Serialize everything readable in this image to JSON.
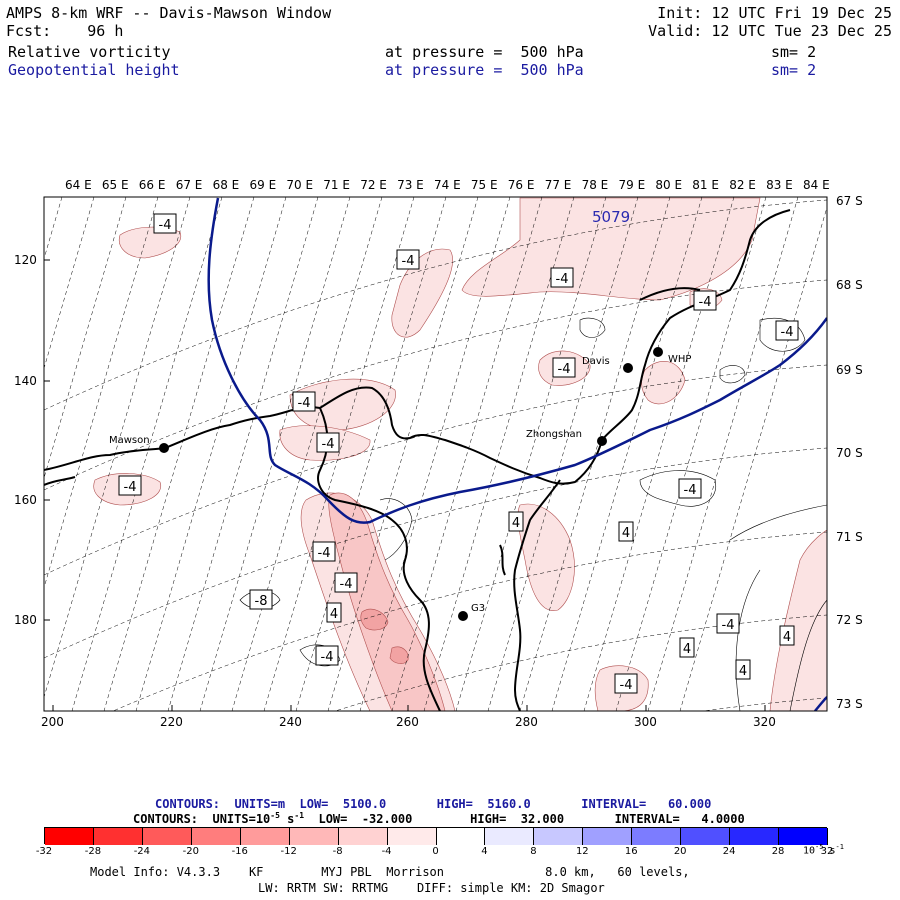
{
  "header": {
    "title": "AMPS 8-km WRF -- Davis-Mawson Window",
    "init": "Init: 12 UTC Fri 19 Dec 25",
    "fcst": "Fcst:    96 h",
    "valid": "Valid: 12 UTC Tue 23 Dec 25",
    "field1": {
      "name": "Relative vorticity",
      "level": "at pressure =  500 hPa",
      "sm": "sm= 2"
    },
    "field2": {
      "name": "Geopotential height",
      "level": "at pressure =  500 hPa",
      "sm": "sm= 2"
    }
  },
  "map": {
    "top_lon_labels": [
      "64 E",
      "65 E",
      "66 E",
      "67 E",
      "68 E",
      "69 E",
      "70 E",
      "71 E",
      "72 E",
      "73 E",
      "74 E",
      "75 E",
      "76 E",
      "77 E",
      "78 E",
      "79 E",
      "80 E",
      "81 E",
      "82 E",
      "83 E",
      "84 E"
    ],
    "right_lat_labels": [
      "67 S",
      "68 S",
      "69 S",
      "70 S",
      "71 S",
      "72 S",
      "73 S"
    ],
    "left_y_ticks": [
      "120",
      "140",
      "160",
      "180"
    ],
    "bottom_x_ticks": [
      "200",
      "220",
      "240",
      "260",
      "280",
      "300",
      "320"
    ],
    "stations": [
      {
        "name": "Mawson",
        "id": "mawson"
      },
      {
        "name": "Davis",
        "id": "davis"
      },
      {
        "name": "WHP",
        "id": "whp"
      },
      {
        "name": "Zhongshan",
        "id": "zhongshan"
      },
      {
        "name": "G3",
        "id": "g3"
      }
    ],
    "height_label": "5079",
    "contour_labels": [
      "-4",
      "-4",
      "-4",
      "-4",
      "-4",
      "-4",
      "-4",
      "-4",
      "-4",
      "-4",
      "4",
      "4",
      "-4",
      "-4",
      "-8",
      "4",
      "-4",
      "4",
      "4",
      "-4",
      "4",
      "-4",
      "-4",
      "-4",
      "4"
    ],
    "colors": {
      "neg_light": "#fbe3e3",
      "neg_mid": "#f8c6c6",
      "neg_dark": "#f2a3a3",
      "height_line": "#0a1a8c",
      "coast": "#000000"
    }
  },
  "legend": {
    "line1": "CONTOURS:  UNITS=m  LOW=  5100.0       HIGH=  5160.0       INTERVAL=   60.000",
    "line2": "CONTOURS:  UNITS=10",
    "line2_sup": "-5",
    "line2_rest": " s",
    "line2_sup2": "-1",
    "line2_tail": "  LOW=  -32.000        HIGH=  32.000       INTERVAL=   4.0000",
    "colorbar_labels": [
      "-32",
      "-28",
      "-24",
      "-20",
      "-16",
      "-12",
      "-8",
      "-4",
      "0",
      "4",
      "8",
      "12",
      "16",
      "20",
      "24",
      "28",
      "32"
    ],
    "colorbar_colors": [
      "#ff0000",
      "#ff3030",
      "#ff5a5a",
      "#ff7d7d",
      "#ff9b9b",
      "#ffb8b8",
      "#ffd2d2",
      "#ffeaea",
      "#ffffff",
      "#ffffff",
      "#eaeaff",
      "#c8c8ff",
      "#a0a0ff",
      "#7c7cff",
      "#5050ff",
      "#2828ff",
      "#0000ff"
    ],
    "units": "10",
    "units_sup": "-5",
    "units_rest": " s",
    "units_sup2": "-1"
  },
  "model_info": {
    "line1": "Model Info: V4.3.3    KF        MYJ PBL  Morrison              8.0 km,   60 levels,",
    "line2": "LW: RRTM SW: RRTMG    DIFF: simple KM: 2D Smagor"
  }
}
